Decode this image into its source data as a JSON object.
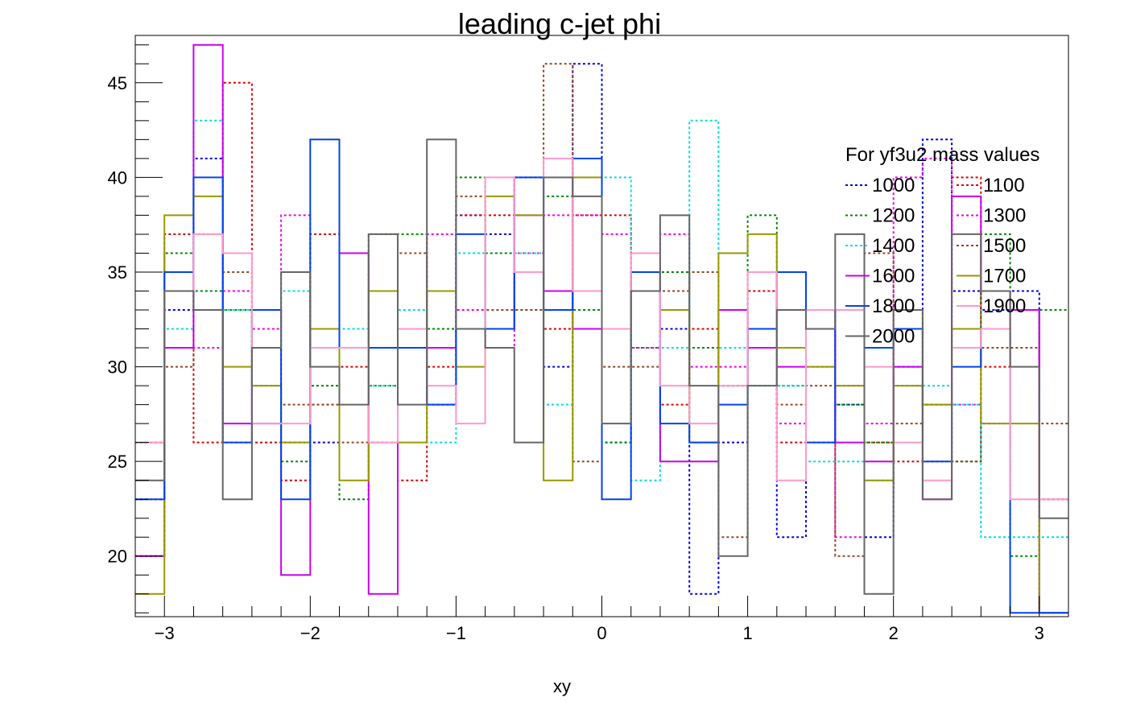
{
  "chart_data": {
    "type": "histogram-step",
    "title": "leading c-jet phi",
    "xlabel": "xy",
    "ylabel": "",
    "xlim": [
      -3.2,
      3.2
    ],
    "ylim": [
      16.8,
      47.5
    ],
    "x_ticks": [
      -3,
      -2,
      -1,
      0,
      1,
      2,
      3
    ],
    "x_tick_labels": [
      "−3",
      "−2",
      "−1",
      "0",
      "1",
      "2",
      "3"
    ],
    "y_ticks": [
      20,
      25,
      30,
      35,
      40,
      45
    ],
    "y_tick_labels": [
      "20",
      "25",
      "30",
      "35",
      "40",
      "45"
    ],
    "grid": false,
    "legend": {
      "title": "For yf3u2 mass values",
      "placement": "top-right"
    },
    "bin_edges": [
      -3.2,
      -3.0,
      -2.8,
      -2.6,
      -2.4,
      -2.2,
      -2.0,
      -1.8,
      -1.6,
      -1.4,
      -1.2,
      -1.0,
      -0.8,
      -0.6,
      -0.4,
      -0.2,
      0.0,
      0.2,
      0.4,
      0.6,
      0.8,
      1.0,
      1.2,
      1.4,
      1.6,
      1.8,
      2.0,
      2.2,
      2.4,
      2.6,
      2.8,
      3.0,
      3.2
    ],
    "series": [
      {
        "name": "1000",
        "color": "#0000ee",
        "dashed": true,
        "values": [
          23,
          33,
          41,
          26,
          33,
          26,
          26,
          31,
          31,
          31,
          28,
          38,
          37,
          40,
          30,
          46,
          26,
          31,
          32,
          18,
          26,
          32,
          21,
          26,
          28,
          21,
          30,
          42,
          34,
          33,
          34,
          17
        ]
      },
      {
        "name": "1100",
        "color": "#dd0000",
        "dashed": true,
        "values": [
          26,
          37,
          26,
          45,
          26,
          24,
          37,
          30,
          26,
          24,
          30,
          38,
          38,
          36,
          32,
          38,
          38,
          31,
          28,
          32,
          29,
          34,
          26,
          33,
          29,
          26,
          25,
          25,
          40,
          30,
          33,
          23
        ]
      },
      {
        "name": "1200",
        "color": "#008800",
        "dashed": true,
        "values": [
          20,
          36,
          34,
          33,
          29,
          25,
          29,
          23,
          29,
          37,
          32,
          40,
          36,
          33,
          39,
          33,
          26,
          31,
          35,
          31,
          29,
          38,
          29,
          30,
          28,
          26,
          29,
          28,
          25,
          37,
          20,
          33
        ]
      },
      {
        "name": "1300",
        "color": "#ee00ee",
        "dashed": true,
        "values": [
          20,
          31,
          31,
          34,
          32,
          38,
          28,
          31,
          31,
          32,
          37,
          33,
          31,
          36,
          38,
          38,
          37,
          31,
          37,
          30,
          30,
          31,
          27,
          33,
          21,
          27,
          40,
          41,
          28,
          27,
          33,
          23
        ]
      },
      {
        "name": "1400",
        "color": "#00dddd",
        "dashed": true,
        "values": [
          26,
          32,
          43,
          33,
          31,
          34,
          31,
          32,
          29,
          33,
          26,
          36,
          32,
          36,
          28,
          32,
          40,
          24,
          31,
          43,
          31,
          29,
          29,
          25,
          25,
          24,
          30,
          29,
          28,
          21,
          21,
          21
        ]
      },
      {
        "name": "1500",
        "color": "#994422",
        "dashed": true,
        "values": [
          26,
          30,
          37,
          35,
          31,
          28,
          28,
          26,
          37,
          36,
          28,
          39,
          33,
          33,
          46,
          25,
          30,
          30,
          34,
          35,
          21,
          32,
          28,
          29,
          20,
          36,
          27,
          28,
          25,
          31,
          31,
          27
        ]
      },
      {
        "name": "1600",
        "color": "#cc00ee",
        "dashed": false,
        "values": [
          20,
          31,
          47,
          27,
          27,
          19,
          31,
          36,
          18,
          31,
          31,
          32,
          32,
          38,
          34,
          32,
          32,
          35,
          25,
          25,
          33,
          31,
          30,
          32,
          26,
          25,
          30,
          23,
          39,
          34,
          33,
          17
        ]
      },
      {
        "name": "1700",
        "color": "#999900",
        "dashed": false,
        "values": [
          18,
          38,
          39,
          30,
          29,
          26,
          32,
          24,
          34,
          26,
          34,
          30,
          39,
          38,
          24,
          40,
          32,
          35,
          33,
          26,
          36,
          37,
          31,
          30,
          29,
          24,
          29,
          28,
          32,
          27,
          27,
          17
        ]
      },
      {
        "name": "1800",
        "color": "#0044ee",
        "dashed": false,
        "values": [
          23,
          35,
          40,
          26,
          33,
          23,
          42,
          31,
          31,
          31,
          28,
          37,
          32,
          40,
          33,
          41,
          23,
          35,
          27,
          26,
          28,
          32,
          35,
          26,
          33,
          31,
          32,
          25,
          30,
          32,
          17,
          17
        ]
      },
      {
        "name": "1900",
        "color": "#ff99cc",
        "dashed": false,
        "values": [
          26,
          34,
          37,
          36,
          27,
          27,
          31,
          31,
          26,
          32,
          29,
          27,
          40,
          35,
          41,
          34,
          32,
          36,
          29,
          27,
          29,
          35,
          24,
          33,
          33,
          30,
          26,
          24,
          31,
          32,
          23,
          23
        ]
      },
      {
        "name": "2000",
        "color": "#666666",
        "dashed": false,
        "values": [
          24,
          34,
          33,
          23,
          31,
          35,
          30,
          28,
          37,
          28,
          42,
          32,
          31,
          26,
          40,
          39,
          27,
          34,
          38,
          29,
          20,
          29,
          33,
          32,
          37,
          18,
          33,
          23,
          37,
          34,
          30,
          22
        ]
      }
    ]
  }
}
